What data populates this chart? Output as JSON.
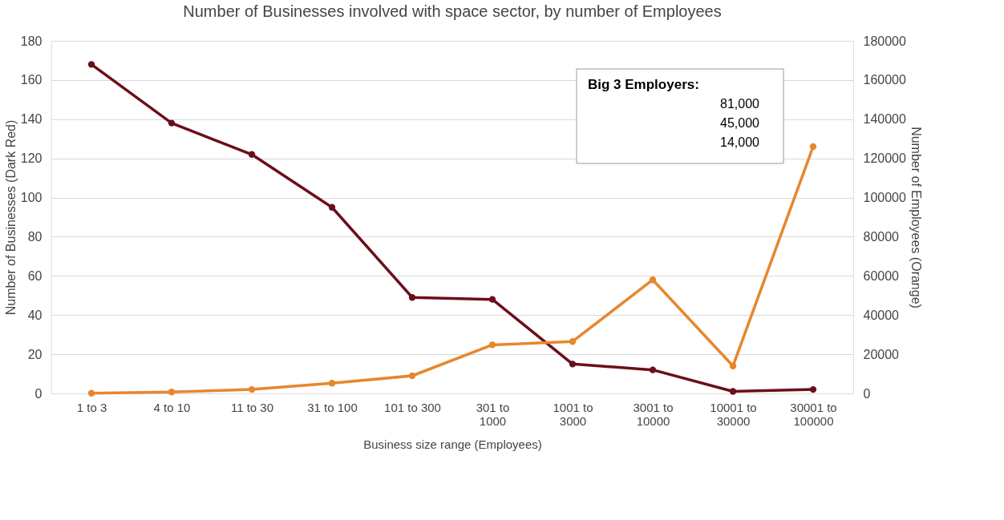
{
  "chart_data": {
    "type": "line",
    "title": "Number of Businesses involved with space sector, by number of Employees",
    "xlabel": "Business size range (Employees)",
    "ylabel": "Number of Businesses (Dark Red)",
    "y2label": "Number of Employees (Orange)",
    "categories": [
      "1 to 3",
      "4 to 10",
      "11 to 30",
      "31 to 100",
      "101 to 300",
      "301 to 1000",
      "1001 to 3000",
      "3001 to 10000",
      "10001 to 30000",
      "30001 to 100000"
    ],
    "series": [
      {
        "color": "#6b0f1a",
        "values": [
          168,
          138,
          122,
          95,
          49,
          48,
          15,
          12,
          1,
          2
        ]
      },
      {
        "color": "#e8862e",
        "axis": "y2",
        "values": [
          100,
          700,
          2000,
          5200,
          9000,
          24800,
          26500,
          58000,
          14000,
          126000
        ]
      }
    ],
    "ylim": [
      0,
      180
    ],
    "yticks": [
      0,
      20,
      40,
      60,
      80,
      100,
      120,
      140,
      160,
      180
    ],
    "y2lim": [
      0,
      180000
    ],
    "y2ticks": [
      0,
      20000,
      40000,
      60000,
      80000,
      100000,
      120000,
      140000,
      160000,
      180000
    ],
    "grid": "y",
    "legend": false,
    "marker": "circle",
    "line_style": "solid",
    "annotations": [
      "Big 3 Employers:",
      "81,000",
      "45,000",
      "14,000"
    ]
  }
}
